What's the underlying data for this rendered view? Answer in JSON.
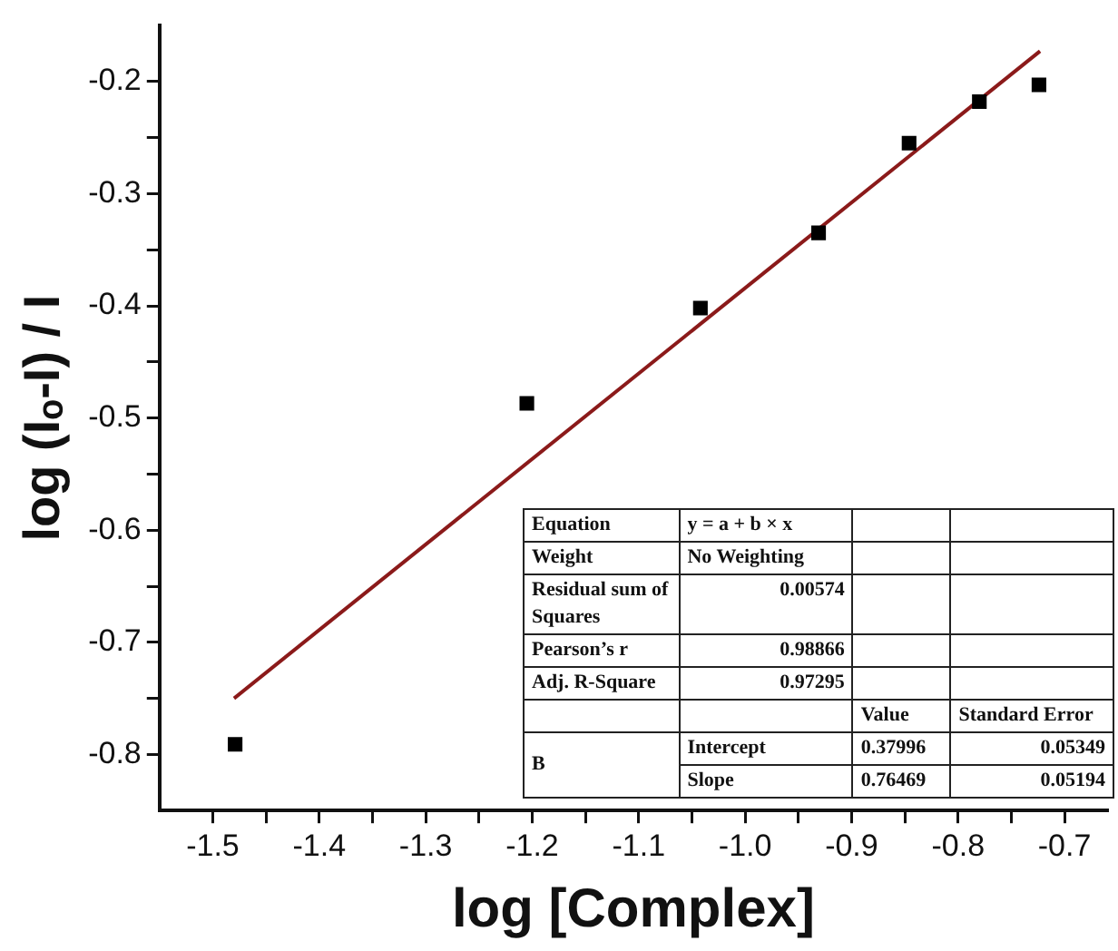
{
  "chart_data": {
    "type": "scatter",
    "xlabel": "log [Complex]",
    "ylabel": "log (Iₒ-I) / I",
    "xlim": [
      -1.55,
      -0.66
    ],
    "xticks": [
      -1.5,
      {
        "value": -1.45,
        "label": null
      },
      -1.4,
      {
        "value": -1.35,
        "label": null
      },
      -1.3,
      {
        "value": -1.25,
        "label": null
      },
      -1.2,
      {
        "value": -1.15,
        "label": null
      },
      -1.1,
      {
        "value": -1.05,
        "label": null
      },
      {
        "value": -1.0,
        "label": "-1.0"
      },
      {
        "value": -0.95,
        "label": null
      },
      -0.9,
      {
        "value": -0.85,
        "label": null
      },
      -0.8,
      {
        "value": -0.75,
        "label": null
      },
      -0.7
    ],
    "ylim": [
      -0.85,
      -0.15
    ],
    "yticks": [
      -0.8,
      {
        "value": -0.75,
        "label": null
      },
      -0.7,
      {
        "value": -0.65,
        "label": null
      },
      -0.6,
      {
        "value": -0.55,
        "label": null
      },
      -0.5,
      {
        "value": -0.45,
        "label": null
      },
      -0.4,
      {
        "value": -0.35,
        "label": null
      },
      -0.3,
      {
        "value": -0.25,
        "label": null
      },
      -0.2
    ],
    "series": [
      {
        "type": "scatter",
        "marker": "square",
        "color": "#000000",
        "x": [
          -1.479,
          -1.205,
          -1.042,
          -0.931,
          -0.846,
          -0.78,
          -0.724
        ],
        "values": [
          -0.791,
          -0.487,
          -0.402,
          -0.335,
          -0.255,
          -0.218,
          -0.203
        ]
      },
      {
        "type": "line",
        "marker": "none",
        "color": "#8b1a1a",
        "x": [
          -1.48,
          -0.723
        ],
        "values": [
          -0.75,
          -0.173
        ]
      }
    ],
    "annotations": [
      "Equation",
      "y = a + b × x",
      "Weight",
      "No Weighting",
      "Residual sum of Squares",
      "0.00574",
      "Pearson’s r",
      "0.98866",
      "Adj.  R-Square",
      "0.97295",
      "Value",
      "Standard  Error",
      "B",
      "Intercept",
      "0.37996",
      "0.05349",
      "Slope",
      "0.76469",
      "0.05194"
    ]
  }
}
